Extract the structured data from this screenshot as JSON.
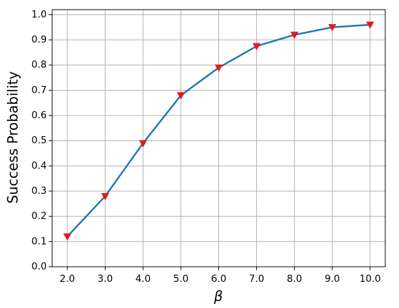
{
  "chart_data": {
    "type": "line",
    "xlabel": "β",
    "ylabel": "Success Probability",
    "x": [
      2,
      3,
      4,
      5,
      6,
      7,
      8,
      9,
      10
    ],
    "series": [
      {
        "color": "#1f77b4",
        "marker_color": "#e31a1c",
        "values": [
          0.12,
          0.28,
          0.49,
          0.68,
          0.79,
          0.875,
          0.92,
          0.95,
          0.96
        ]
      }
    ],
    "xlim": [
      1.6,
      10.4
    ],
    "ylim": [
      0,
      1.02
    ],
    "xticks": [
      {
        "value": 2,
        "label": "2.0"
      },
      {
        "value": 3,
        "label": "3.0"
      },
      {
        "value": 4,
        "label": "4.0"
      },
      {
        "value": 5,
        "label": "5.0"
      },
      {
        "value": 6,
        "label": "6.0"
      },
      {
        "value": 7,
        "label": "7.0"
      },
      {
        "value": 8,
        "label": "8.0"
      },
      {
        "value": 9,
        "label": "9.0"
      },
      {
        "value": 10,
        "label": "10.0"
      }
    ],
    "yticks": [
      {
        "value": 0,
        "label": "0.0"
      },
      0.1,
      0.2,
      0.3,
      0.4,
      0.5,
      0.6,
      0.7,
      0.8,
      0.9,
      {
        "value": 1,
        "label": "1.0"
      }
    ],
    "grid": true
  }
}
